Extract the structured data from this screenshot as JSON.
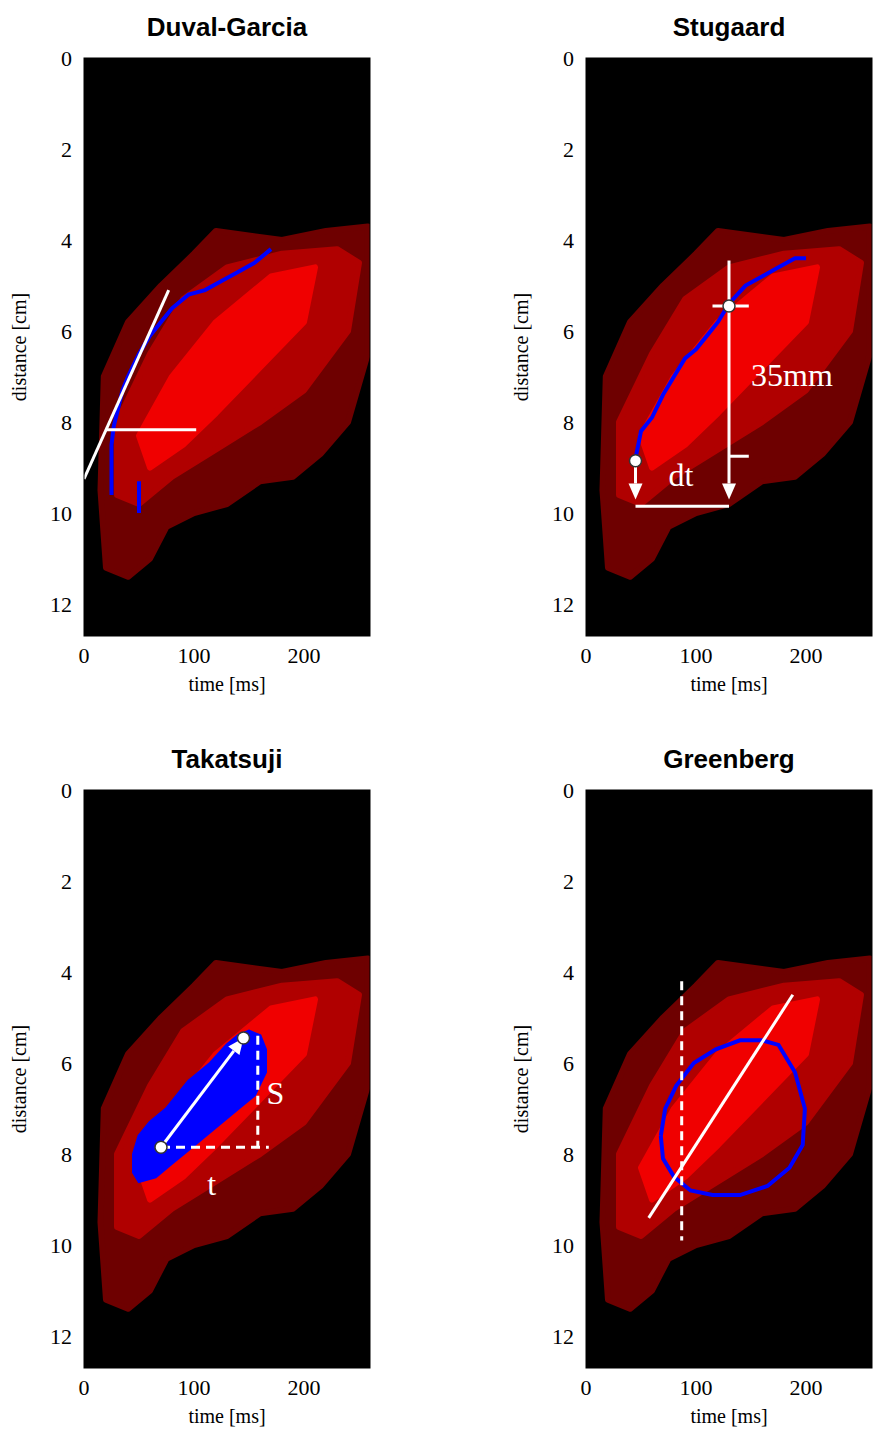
{
  "chart_data": [
    {
      "type": "image",
      "title": "Duval-Garcia",
      "x_label": "time [ms]",
      "y_label": "distance [cm]",
      "xlim": [
        0,
        260
      ],
      "ylim": [
        0,
        12.7
      ],
      "xticks": [
        0,
        100,
        200
      ],
      "yticks": [
        0,
        2,
        4,
        6,
        8,
        10,
        12
      ],
      "grid": false,
      "contours": [
        {
          "color": "#6e0000",
          "x": [
            18,
            40,
            70,
            100,
            120,
            180,
            220,
            258,
            258,
            240,
            215,
            190,
            160,
            130,
            100,
            75,
            60,
            40,
            20,
            15
          ],
          "y": [
            7.0,
            5.8,
            5.0,
            4.3,
            3.8,
            4.0,
            3.8,
            3.7,
            6.5,
            8.0,
            8.7,
            9.2,
            9.3,
            9.8,
            10.0,
            10.3,
            11.0,
            11.4,
            11.2,
            9.5
          ]
        },
        {
          "color": "#b00000",
          "x": [
            30,
            60,
            90,
            130,
            180,
            230,
            250,
            240,
            200,
            160,
            120,
            80,
            50,
            30
          ],
          "y": [
            8.0,
            6.5,
            5.3,
            4.6,
            4.3,
            4.2,
            4.5,
            6.0,
            7.3,
            8.0,
            8.6,
            9.2,
            9.8,
            9.6
          ]
        },
        {
          "color": "#f00000",
          "x": [
            50,
            80,
            120,
            170,
            210,
            200,
            160,
            120,
            90,
            60
          ],
          "y": [
            8.3,
            7.0,
            5.8,
            4.8,
            4.6,
            5.8,
            6.8,
            7.8,
            8.5,
            9.0
          ]
        }
      ],
      "series": [
        {
          "type": "line",
          "color": "#0000ff",
          "x": [
            25,
            25,
            25,
            27,
            30,
            35,
            40,
            50,
            60,
            70,
            80,
            95,
            110,
            125,
            140,
            155,
            170,
            null,
            50,
            50
          ],
          "values": [
            9.6,
            9.0,
            8.5,
            8.1,
            7.8,
            7.3,
            7.0,
            6.5,
            6.1,
            5.8,
            5.5,
            5.2,
            5.1,
            4.9,
            4.7,
            4.5,
            4.2,
            null,
            9.3,
            10.0
          ]
        }
      ],
      "annotations": [
        {
          "type": "line",
          "color": "#ffffff",
          "x": [
            0,
            77
          ],
          "y": [
            9.25,
            5.1
          ]
        },
        {
          "type": "line",
          "color": "#ffffff",
          "x": [
            20,
            102
          ],
          "y": [
            8.17,
            8.17
          ]
        }
      ]
    },
    {
      "type": "image",
      "title": "Stugaard",
      "x_label": "time [ms]",
      "y_label": "distance [cm]",
      "xlim": [
        0,
        260
      ],
      "ylim": [
        0,
        12.7
      ],
      "xticks": [
        0,
        100,
        200
      ],
      "yticks": [
        0,
        2,
        4,
        6,
        8,
        10,
        12
      ],
      "grid": false,
      "contours": [
        {
          "color": "#6e0000",
          "x": [
            18,
            40,
            70,
            100,
            120,
            180,
            220,
            258,
            258,
            240,
            215,
            190,
            160,
            130,
            100,
            75,
            60,
            40,
            20,
            15
          ],
          "y": [
            7.0,
            5.8,
            5.0,
            4.3,
            3.8,
            4.0,
            3.8,
            3.7,
            6.5,
            8.0,
            8.7,
            9.2,
            9.3,
            9.8,
            10.0,
            10.3,
            11.0,
            11.4,
            11.2,
            9.5
          ]
        },
        {
          "color": "#b00000",
          "x": [
            30,
            60,
            90,
            130,
            180,
            230,
            250,
            240,
            200,
            160,
            120,
            80,
            50,
            30
          ],
          "y": [
            8.0,
            6.5,
            5.3,
            4.6,
            4.3,
            4.2,
            4.5,
            6.0,
            7.3,
            8.0,
            8.6,
            9.2,
            9.8,
            9.6
          ]
        },
        {
          "color": "#f00000",
          "x": [
            50,
            80,
            120,
            170,
            210,
            200,
            160,
            120,
            90,
            60
          ],
          "y": [
            8.3,
            7.0,
            5.8,
            4.8,
            4.6,
            5.8,
            6.8,
            7.8,
            8.5,
            9.0
          ]
        }
      ],
      "series": [
        {
          "type": "line",
          "color": "#0000ff",
          "x": [
            45,
            50,
            60,
            70,
            80,
            90,
            100,
            110,
            120,
            130,
            145,
            160,
            175,
            190,
            200
          ],
          "values": [
            8.8,
            8.2,
            7.9,
            7.4,
            7.0,
            6.6,
            6.4,
            6.1,
            5.8,
            5.4,
            5.0,
            4.8,
            4.6,
            4.4,
            4.4
          ]
        }
      ],
      "annotations": [
        {
          "type": "arrow",
          "color": "#ffffff",
          "x": [
            45,
            45
          ],
          "y": [
            8.95,
            9.7
          ]
        },
        {
          "type": "line",
          "color": "#ffffff",
          "x": [
            45,
            130
          ],
          "y": [
            9.85,
            9.85
          ]
        },
        {
          "type": "arrow",
          "color": "#ffffff",
          "x": [
            130,
            130
          ],
          "y": [
            4.45,
            9.7
          ]
        },
        {
          "type": "line",
          "color": "#ffffff",
          "x": [
            115,
            148
          ],
          "y": [
            5.45,
            5.45
          ]
        },
        {
          "type": "line",
          "color": "#ffffff",
          "x": [
            130,
            148
          ],
          "y": [
            8.75,
            8.75
          ]
        },
        {
          "type": "point",
          "color": "#ffffff",
          "x": 45,
          "y": 8.85
        },
        {
          "type": "point",
          "color": "#ffffff",
          "x": 130,
          "y": 5.45
        },
        {
          "type": "text",
          "color": "#ffffff",
          "text": "35mm",
          "x": 150,
          "y": 7.2
        },
        {
          "type": "text",
          "color": "#ffffff",
          "text": "dt",
          "x": 75,
          "y": 9.4
        }
      ]
    },
    {
      "type": "image",
      "title": "Takatsuji",
      "x_label": "time [ms]",
      "y_label": "distance [cm]",
      "xlim": [
        0,
        260
      ],
      "ylim": [
        0,
        12.7
      ],
      "xticks": [
        0,
        100,
        200
      ],
      "yticks": [
        0,
        2,
        4,
        6,
        8,
        10,
        12
      ],
      "grid": false,
      "contours": [
        {
          "color": "#6e0000",
          "x": [
            18,
            40,
            70,
            100,
            120,
            180,
            220,
            258,
            258,
            240,
            215,
            190,
            160,
            130,
            100,
            75,
            60,
            40,
            20,
            15
          ],
          "y": [
            7.0,
            5.8,
            5.0,
            4.3,
            3.8,
            4.0,
            3.8,
            3.7,
            6.5,
            8.0,
            8.7,
            9.2,
            9.3,
            9.8,
            10.0,
            10.3,
            11.0,
            11.4,
            11.2,
            9.5
          ]
        },
        {
          "color": "#b00000",
          "x": [
            30,
            60,
            90,
            130,
            180,
            230,
            250,
            240,
            200,
            160,
            120,
            80,
            50,
            30
          ],
          "y": [
            8.0,
            6.5,
            5.3,
            4.6,
            4.3,
            4.2,
            4.5,
            6.0,
            7.3,
            8.0,
            8.6,
            9.2,
            9.8,
            9.6
          ]
        },
        {
          "color": "#f00000",
          "x": [
            50,
            80,
            120,
            170,
            210,
            200,
            160,
            120,
            90,
            60
          ],
          "y": [
            8.3,
            7.0,
            5.8,
            4.8,
            4.6,
            5.8,
            6.8,
            7.8,
            8.5,
            9.0
          ]
        }
      ],
      "series": [
        {
          "type": "area",
          "color": "#0000ff",
          "x": [
            45,
            50,
            60,
            75,
            95,
            115,
            130,
            140,
            150,
            160,
            165,
            165,
            155,
            140,
            120,
            100,
            80,
            65,
            50,
            45
          ],
          "values": [
            8.0,
            7.6,
            7.3,
            7.0,
            6.4,
            6.0,
            5.6,
            5.4,
            5.3,
            5.4,
            5.7,
            6.2,
            6.7,
            7.0,
            7.4,
            7.8,
            8.2,
            8.5,
            8.6,
            8.4
          ]
        }
      ],
      "annotations": [
        {
          "type": "line",
          "color": "#ffffff",
          "line_style": "dashed",
          "x": [
            70,
            168
          ],
          "y": [
            7.85,
            7.85
          ]
        },
        {
          "type": "line",
          "color": "#ffffff",
          "line_style": "dashed",
          "x": [
            158,
            158
          ],
          "y": [
            5.4,
            7.85
          ]
        },
        {
          "type": "arrow",
          "color": "#ffffff",
          "x": [
            70,
            145
          ],
          "y": [
            7.85,
            5.45
          ]
        },
        {
          "type": "point",
          "color": "#ffffff",
          "x": 70,
          "y": 7.85
        },
        {
          "type": "point",
          "color": "#ffffff",
          "x": 145,
          "y": 5.45
        },
        {
          "type": "text",
          "color": "#ffffff",
          "text": "S",
          "x": 166,
          "y": 6.9
        },
        {
          "type": "text",
          "color": "#ffffff",
          "text": "t",
          "x": 112,
          "y": 8.9
        }
      ]
    },
    {
      "type": "image",
      "title": "Greenberg",
      "x_label": "time [ms]",
      "y_label": "distance [cm]",
      "xlim": [
        0,
        260
      ],
      "ylim": [
        0,
        12.7
      ],
      "xticks": [
        0,
        100,
        200
      ],
      "yticks": [
        0,
        2,
        4,
        6,
        8,
        10,
        12
      ],
      "grid": false,
      "contours": [
        {
          "color": "#6e0000",
          "x": [
            18,
            40,
            70,
            100,
            120,
            180,
            220,
            258,
            258,
            240,
            215,
            190,
            160,
            130,
            100,
            75,
            60,
            40,
            20,
            15
          ],
          "y": [
            7.0,
            5.8,
            5.0,
            4.3,
            3.8,
            4.0,
            3.8,
            3.7,
            6.5,
            8.0,
            8.7,
            9.2,
            9.3,
            9.8,
            10.0,
            10.3,
            11.0,
            11.4,
            11.2,
            9.5
          ]
        },
        {
          "color": "#b00000",
          "x": [
            30,
            60,
            90,
            130,
            180,
            230,
            250,
            240,
            200,
            160,
            120,
            80,
            50,
            30
          ],
          "y": [
            8.0,
            6.5,
            5.3,
            4.6,
            4.3,
            4.2,
            4.5,
            6.0,
            7.3,
            8.0,
            8.6,
            9.2,
            9.8,
            9.6
          ]
        },
        {
          "color": "#f00000",
          "x": [
            50,
            80,
            120,
            170,
            210,
            200,
            160,
            120,
            90,
            60
          ],
          "y": [
            8.3,
            7.0,
            5.8,
            4.8,
            4.6,
            5.8,
            6.8,
            7.8,
            8.5,
            9.0
          ]
        }
      ],
      "series": [
        {
          "type": "line",
          "color": "#0000ff",
          "x": [
            68,
            72,
            82,
            98,
            118,
            140,
            160,
            175,
            190,
            199,
            197,
            185,
            165,
            140,
            115,
            95,
            80,
            70,
            68
          ],
          "values": [
            7.6,
            7.0,
            6.5,
            6.0,
            5.7,
            5.5,
            5.5,
            5.6,
            6.2,
            7.0,
            7.8,
            8.3,
            8.7,
            8.9,
            8.9,
            8.8,
            8.5,
            8.1,
            7.6
          ]
        }
      ],
      "annotations": [
        {
          "type": "line",
          "color": "#ffffff",
          "x": [
            57,
            188
          ],
          "y": [
            9.4,
            4.5
          ]
        },
        {
          "type": "line",
          "color": "#ffffff",
          "line_style": "dashed",
          "x": [
            87,
            87
          ],
          "y": [
            4.2,
            9.9
          ]
        }
      ]
    }
  ]
}
